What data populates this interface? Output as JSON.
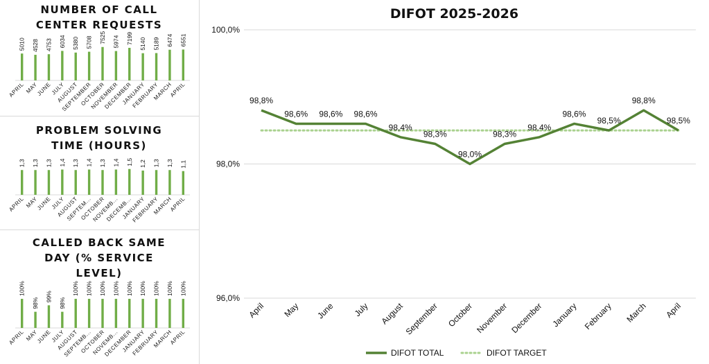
{
  "chart_data": [
    {
      "type": "bar",
      "title": "NUMBER OF CALL CENTER REQUESTS",
      "categories": [
        "APRIL",
        "MAY",
        "JUNE",
        "JULY",
        "AUGUST",
        "SEPTEMBER",
        "OCTOBER",
        "NOVEMBER",
        "DECEMBER",
        "JANUARY",
        "FEBRUARY",
        "MARCH",
        "APRIL"
      ],
      "values": [
        5010,
        4528,
        4753,
        6034,
        5380,
        5708,
        7525,
        5974,
        7199,
        5140,
        5189,
        6474,
        6551
      ],
      "data_labels": [
        "5010",
        "4528",
        "4753",
        "6034",
        "5380",
        "5708",
        "7525",
        "5974",
        "7199",
        "5140",
        "5189",
        "6474",
        "6551"
      ],
      "ylim": [
        0,
        8000
      ],
      "color": "#70ad47"
    },
    {
      "type": "bar",
      "title": "PROBLEM SOLVING TIME (HOURS)",
      "categories": [
        "APRIL",
        "MAY",
        "JUNE",
        "JULY",
        "AUGUST",
        "SEPTEM...",
        "OCTOBER",
        "NOVEMB...",
        "DECEMB...",
        "JANUARY",
        "FEBRUARY",
        "MARCH",
        "APRIL"
      ],
      "values": [
        1.3,
        1.3,
        1.3,
        1.4,
        1.3,
        1.4,
        1.3,
        1.4,
        1.5,
        1.2,
        1.3,
        1.3,
        1.1
      ],
      "data_labels": [
        "1,3",
        "1,3",
        "1,3",
        "1,4",
        "1,3",
        "1,4",
        "1,3",
        "1,4",
        "1,5",
        "1,2",
        "1,3",
        "1,3",
        "1,1"
      ],
      "ylim": [
        0,
        1.6
      ],
      "color": "#70ad47"
    },
    {
      "type": "bar",
      "title": "CALLED BACK SAME DAY (% SERVICE LEVEL)",
      "categories": [
        "APRIL",
        "MAY",
        "JUNE",
        "JULY",
        "AUGUST",
        "SEPTEMB...",
        "OCTOBER",
        "NOVEMB...",
        "DECEMBER",
        "JANUARY",
        "FEBRUARY",
        "MARCH",
        "APRIL"
      ],
      "values": [
        100,
        98,
        99,
        98,
        100,
        100,
        100,
        100,
        100,
        100,
        100,
        100,
        100
      ],
      "data_labels": [
        "100%",
        "98%",
        "99%",
        "98%",
        "100%",
        "100%",
        "100%",
        "100%",
        "100%",
        "100%",
        "100%",
        "100%",
        "100%"
      ],
      "ylim": [
        97,
        100
      ],
      "color": "#70ad47"
    },
    {
      "type": "line",
      "title": "DIFOT 2025-2026",
      "categories": [
        "April",
        "May",
        "June",
        "July",
        "August",
        "September",
        "October",
        "November",
        "December",
        "January",
        "February",
        "March",
        "April"
      ],
      "series": [
        {
          "name": "DIFOT TOTAL",
          "values": [
            98.8,
            98.6,
            98.6,
            98.6,
            98.4,
            98.3,
            98.0,
            98.3,
            98.4,
            98.6,
            98.5,
            98.8,
            98.5
          ],
          "data_labels": [
            "98,8%",
            "98,6%",
            "98,6%",
            "98,6%",
            "98,4%",
            "98,3%",
            "98,0%",
            "98,3%",
            "98,4%",
            "98,6%",
            "98,5%",
            "98,8%",
            "98,5%"
          ],
          "color": "#548235",
          "style": "solid"
        },
        {
          "name": "DIFOT TARGET",
          "values": [
            98.5,
            98.5,
            98.5,
            98.5,
            98.5,
            98.5,
            98.5,
            98.5,
            98.5,
            98.5,
            98.5,
            98.5,
            98.5
          ],
          "color": "#a9d18e",
          "style": "dotted"
        }
      ],
      "yticks": [
        "100,0%",
        "98,0%",
        "96,0%"
      ],
      "ytick_values": [
        100,
        98,
        96
      ],
      "ylim": [
        96,
        100
      ],
      "grid": true,
      "legend": "bottom"
    }
  ]
}
